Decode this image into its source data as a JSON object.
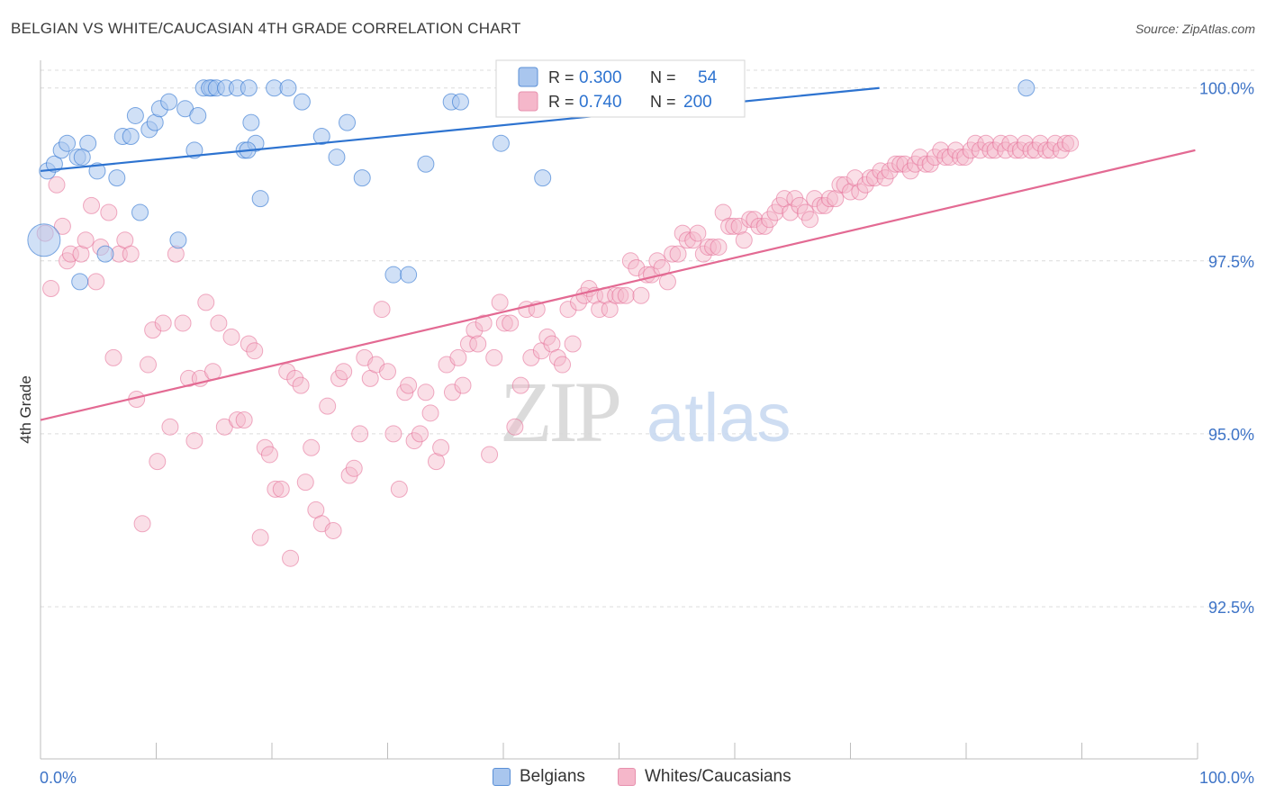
{
  "title": "BELGIAN VS WHITE/CAUCASIAN 4TH GRADE CORRELATION CHART",
  "source": "Source: ZipAtlas.com",
  "watermark": {
    "zip": "ZIP",
    "atlas": "atlas"
  },
  "colors": {
    "blue": "#2d73d0",
    "blue_fill": "#a9c6ee",
    "pink": "#e36a93",
    "pink_fill": "#f5b7ca",
    "axis_label": "#3e74c7",
    "grid": "#dcdcdc"
  },
  "chart_data": {
    "type": "scatter",
    "title": "BELGIAN VS WHITE/CAUCASIAN 4TH GRADE CORRELATION CHART",
    "xlabel": "",
    "ylabel": "4th Grade",
    "xlim": [
      0,
      100
    ],
    "ylim": [
      90.3,
      100.4
    ],
    "x_tick_labels": [
      "0.0%",
      "100.0%"
    ],
    "y_ticks": [
      92.5,
      95.0,
      97.5,
      100.0
    ],
    "y_tick_labels": [
      "92.5%",
      "95.0%",
      "97.5%",
      "100.0%"
    ],
    "grid": true,
    "legend_position": "top-center",
    "stats": [
      {
        "r_label": "R =",
        "r": "0.300",
        "n_label": "N =",
        "n": "54"
      },
      {
        "r_label": "R =",
        "r": "0.740",
        "n_label": "N =",
        "n": "200"
      }
    ],
    "series": [
      {
        "name": "Belgians",
        "color": "#2d73d0",
        "trend": {
          "x": [
            0,
            72.5
          ],
          "y": [
            98.8,
            100.0
          ]
        },
        "points": [
          [
            0.3,
            97.8
          ],
          [
            0.6,
            98.8
          ],
          [
            1.2,
            98.9
          ],
          [
            1.8,
            99.1
          ],
          [
            2.3,
            99.2
          ],
          [
            3.2,
            99.0
          ],
          [
            4.1,
            99.2
          ],
          [
            3.6,
            99.0
          ],
          [
            4.9,
            98.8
          ],
          [
            5.6,
            97.6
          ],
          [
            6.6,
            98.7
          ],
          [
            7.1,
            99.3
          ],
          [
            7.8,
            99.3
          ],
          [
            8.6,
            98.2
          ],
          [
            8.2,
            99.6
          ],
          [
            9.4,
            99.4
          ],
          [
            9.9,
            99.5
          ],
          [
            10.3,
            99.7
          ],
          [
            11.1,
            99.8
          ],
          [
            11.9,
            97.8
          ],
          [
            12.5,
            99.7
          ],
          [
            13.3,
            99.1
          ],
          [
            13.6,
            99.6
          ],
          [
            14.1,
            100.0
          ],
          [
            14.8,
            100.0
          ],
          [
            14.6,
            100.0
          ],
          [
            15.2,
            100.0
          ],
          [
            16.0,
            100.0
          ],
          [
            17.0,
            100.0
          ],
          [
            18.0,
            100.0
          ],
          [
            18.2,
            99.5
          ],
          [
            17.6,
            99.1
          ],
          [
            19.0,
            98.4
          ],
          [
            18.6,
            99.2
          ],
          [
            17.9,
            99.1
          ],
          [
            20.2,
            100.0
          ],
          [
            21.4,
            100.0
          ],
          [
            22.6,
            99.8
          ],
          [
            24.3,
            99.3
          ],
          [
            25.6,
            99.0
          ],
          [
            26.5,
            99.5
          ],
          [
            27.8,
            98.7
          ],
          [
            30.5,
            97.3
          ],
          [
            31.8,
            97.3
          ],
          [
            33.3,
            98.9
          ],
          [
            35.5,
            99.8
          ],
          [
            36.3,
            99.8
          ],
          [
            39.8,
            99.2
          ],
          [
            43.4,
            98.7
          ],
          [
            42.0,
            100.0
          ],
          [
            55.4,
            100.0
          ],
          [
            55.0,
            100.0
          ],
          [
            85.2,
            100.0
          ],
          [
            3.4,
            97.2
          ]
        ]
      },
      {
        "name": "Whites/Caucasians",
        "color": "#e36a93",
        "trend": {
          "x": [
            0,
            99.8
          ],
          "y": [
            95.2,
            99.1
          ]
        },
        "points": [
          [
            0.4,
            97.9
          ],
          [
            0.9,
            97.1
          ],
          [
            1.4,
            98.6
          ],
          [
            1.9,
            98.0
          ],
          [
            2.3,
            97.5
          ],
          [
            2.6,
            97.6
          ],
          [
            3.5,
            97.6
          ],
          [
            3.9,
            97.8
          ],
          [
            4.4,
            98.3
          ],
          [
            4.8,
            97.2
          ],
          [
            5.2,
            97.7
          ],
          [
            5.9,
            98.2
          ],
          [
            6.3,
            96.1
          ],
          [
            6.8,
            97.6
          ],
          [
            7.3,
            97.8
          ],
          [
            7.8,
            97.6
          ],
          [
            8.3,
            95.5
          ],
          [
            8.8,
            93.7
          ],
          [
            9.3,
            96.0
          ],
          [
            9.7,
            96.5
          ],
          [
            10.1,
            94.6
          ],
          [
            10.6,
            96.6
          ],
          [
            11.2,
            95.1
          ],
          [
            11.7,
            97.6
          ],
          [
            12.3,
            96.6
          ],
          [
            12.8,
            95.8
          ],
          [
            13.3,
            94.9
          ],
          [
            13.8,
            95.8
          ],
          [
            14.3,
            96.9
          ],
          [
            14.9,
            95.9
          ],
          [
            15.4,
            96.6
          ],
          [
            15.9,
            95.1
          ],
          [
            16.5,
            96.4
          ],
          [
            17.0,
            95.2
          ],
          [
            17.6,
            95.2
          ],
          [
            18.0,
            96.3
          ],
          [
            18.5,
            96.2
          ],
          [
            19.0,
            93.5
          ],
          [
            19.4,
            94.8
          ],
          [
            19.8,
            94.7
          ],
          [
            20.3,
            94.2
          ],
          [
            20.8,
            94.2
          ],
          [
            21.3,
            95.9
          ],
          [
            21.6,
            93.2
          ],
          [
            22.0,
            95.8
          ],
          [
            22.5,
            95.7
          ],
          [
            22.9,
            94.3
          ],
          [
            23.4,
            94.8
          ],
          [
            23.8,
            93.9
          ],
          [
            24.3,
            93.7
          ],
          [
            24.8,
            95.4
          ],
          [
            25.3,
            93.6
          ],
          [
            25.8,
            95.8
          ],
          [
            26.2,
            95.9
          ],
          [
            26.7,
            94.4
          ],
          [
            27.1,
            94.5
          ],
          [
            27.6,
            95.0
          ],
          [
            28.0,
            96.1
          ],
          [
            28.5,
            95.8
          ],
          [
            29.0,
            96.0
          ],
          [
            29.5,
            96.8
          ],
          [
            30.0,
            95.9
          ],
          [
            30.5,
            95.0
          ],
          [
            31.0,
            94.2
          ],
          [
            31.5,
            95.6
          ],
          [
            31.8,
            95.7
          ],
          [
            32.3,
            94.9
          ],
          [
            32.8,
            95.0
          ],
          [
            33.3,
            95.6
          ],
          [
            33.7,
            95.3
          ],
          [
            34.2,
            94.6
          ],
          [
            34.6,
            94.8
          ],
          [
            35.1,
            96.0
          ],
          [
            35.6,
            95.6
          ],
          [
            36.1,
            96.1
          ],
          [
            36.5,
            95.7
          ],
          [
            37.0,
            96.3
          ],
          [
            37.5,
            96.5
          ],
          [
            37.8,
            96.3
          ],
          [
            38.3,
            96.6
          ],
          [
            38.8,
            94.7
          ],
          [
            39.2,
            96.1
          ],
          [
            39.7,
            96.9
          ],
          [
            40.1,
            96.6
          ],
          [
            40.6,
            96.6
          ],
          [
            41.0,
            95.1
          ],
          [
            41.5,
            95.7
          ],
          [
            42.0,
            96.8
          ],
          [
            42.4,
            96.1
          ],
          [
            42.9,
            96.8
          ],
          [
            43.3,
            96.2
          ],
          [
            43.8,
            96.4
          ],
          [
            44.2,
            96.3
          ],
          [
            44.7,
            96.1
          ],
          [
            45.1,
            96.0
          ],
          [
            45.6,
            96.8
          ],
          [
            46.0,
            96.3
          ],
          [
            46.5,
            96.9
          ],
          [
            47.0,
            97.0
          ],
          [
            47.4,
            97.1
          ],
          [
            47.9,
            97.0
          ],
          [
            48.3,
            96.8
          ],
          [
            48.8,
            97.0
          ],
          [
            49.2,
            96.8
          ],
          [
            49.7,
            97.0
          ],
          [
            50.1,
            97.0
          ],
          [
            50.6,
            97.0
          ],
          [
            51.0,
            97.5
          ],
          [
            51.5,
            97.4
          ],
          [
            51.9,
            97.0
          ],
          [
            52.4,
            97.3
          ],
          [
            52.8,
            97.3
          ],
          [
            53.3,
            97.5
          ],
          [
            53.7,
            97.4
          ],
          [
            54.2,
            97.2
          ],
          [
            54.6,
            97.6
          ],
          [
            55.1,
            97.6
          ],
          [
            55.5,
            97.9
          ],
          [
            55.9,
            97.8
          ],
          [
            56.4,
            97.8
          ],
          [
            56.8,
            97.9
          ],
          [
            57.3,
            97.6
          ],
          [
            57.7,
            97.7
          ],
          [
            58.1,
            97.7
          ],
          [
            58.6,
            97.7
          ],
          [
            59.0,
            98.2
          ],
          [
            59.5,
            98.0
          ],
          [
            59.9,
            98.0
          ],
          [
            60.4,
            98.0
          ],
          [
            60.8,
            97.8
          ],
          [
            61.3,
            98.1
          ],
          [
            61.7,
            98.1
          ],
          [
            62.1,
            98.0
          ],
          [
            62.6,
            98.0
          ],
          [
            63.0,
            98.1
          ],
          [
            63.5,
            98.2
          ],
          [
            63.9,
            98.3
          ],
          [
            64.3,
            98.4
          ],
          [
            64.8,
            98.2
          ],
          [
            65.2,
            98.4
          ],
          [
            65.6,
            98.3
          ],
          [
            66.1,
            98.2
          ],
          [
            66.5,
            98.1
          ],
          [
            66.9,
            98.4
          ],
          [
            67.4,
            98.3
          ],
          [
            67.8,
            98.3
          ],
          [
            68.2,
            98.4
          ],
          [
            68.7,
            98.4
          ],
          [
            69.1,
            98.6
          ],
          [
            69.5,
            98.6
          ],
          [
            70.0,
            98.5
          ],
          [
            70.4,
            98.7
          ],
          [
            70.8,
            98.5
          ],
          [
            71.3,
            98.6
          ],
          [
            71.7,
            98.7
          ],
          [
            72.1,
            98.7
          ],
          [
            72.6,
            98.8
          ],
          [
            73.0,
            98.7
          ],
          [
            73.4,
            98.8
          ],
          [
            73.9,
            98.9
          ],
          [
            74.3,
            98.9
          ],
          [
            74.7,
            98.9
          ],
          [
            75.2,
            98.8
          ],
          [
            75.6,
            98.9
          ],
          [
            76.0,
            99.0
          ],
          [
            76.5,
            98.9
          ],
          [
            76.9,
            98.9
          ],
          [
            77.3,
            99.0
          ],
          [
            77.8,
            99.1
          ],
          [
            78.2,
            99.0
          ],
          [
            78.6,
            99.0
          ],
          [
            79.1,
            99.1
          ],
          [
            79.5,
            99.0
          ],
          [
            79.9,
            99.0
          ],
          [
            80.4,
            99.1
          ],
          [
            80.8,
            99.2
          ],
          [
            81.2,
            99.1
          ],
          [
            81.7,
            99.2
          ],
          [
            82.1,
            99.1
          ],
          [
            82.5,
            99.1
          ],
          [
            83.0,
            99.2
          ],
          [
            83.4,
            99.1
          ],
          [
            83.8,
            99.2
          ],
          [
            84.3,
            99.1
          ],
          [
            84.7,
            99.1
          ],
          [
            85.1,
            99.2
          ],
          [
            85.6,
            99.1
          ],
          [
            86.0,
            99.1
          ],
          [
            86.4,
            99.2
          ],
          [
            86.9,
            99.1
          ],
          [
            87.3,
            99.1
          ],
          [
            87.7,
            99.2
          ],
          [
            88.2,
            99.1
          ],
          [
            88.6,
            99.2
          ],
          [
            89.0,
            99.2
          ]
        ]
      }
    ]
  }
}
